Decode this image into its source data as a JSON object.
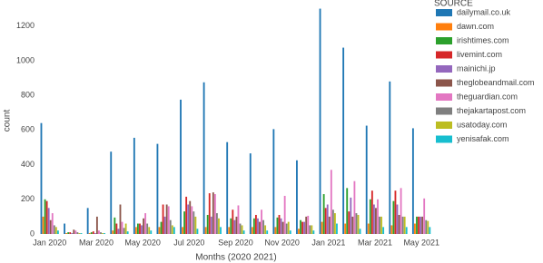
{
  "chart_data": {
    "type": "grouped-bar",
    "x_label": "Months (2020 2021)",
    "y_label": "count",
    "legend_title": "SOURCE",
    "categories": [
      "Jan 2020",
      null,
      "Mar 2020",
      null,
      "May 2020",
      null,
      "Jul 2020",
      null,
      "Sep 2020",
      null,
      "Nov 2020",
      null,
      "Jan 2021",
      null,
      "Mar 2021",
      null,
      "May 2021"
    ],
    "ylim": [
      0,
      1350
    ],
    "yticks": [
      0,
      200,
      400,
      600,
      800,
      1000,
      1200
    ],
    "legend_position": "right",
    "series": [
      {
        "name": "dailymail.co.uk",
        "color": "#1f77b4",
        "values": [
          640,
          60,
          150,
          475,
          555,
          520,
          775,
          875,
          530,
          465,
          605,
          425,
          1300,
          1075,
          625,
          880,
          610
        ]
      },
      {
        "name": "dawn.com",
        "color": "#ff7f0e",
        "values": [
          100,
          5,
          5,
          20,
          40,
          40,
          40,
          40,
          40,
          40,
          40,
          30,
          70,
          60,
          60,
          50,
          60
        ]
      },
      {
        "name": "irishtimes.com",
        "color": "#2ca02c",
        "values": [
          200,
          10,
          10,
          95,
          60,
          70,
          130,
          110,
          90,
          90,
          95,
          80,
          230,
          265,
          200,
          190,
          100
        ]
      },
      {
        "name": "livemint.com",
        "color": "#d62728",
        "values": [
          190,
          10,
          15,
          60,
          60,
          170,
          215,
          235,
          140,
          110,
          110,
          70,
          150,
          130,
          250,
          250,
          100
        ]
      },
      {
        "name": "mainichi.jp",
        "color": "#9467bd",
        "values": [
          150,
          5,
          5,
          30,
          50,
          100,
          170,
          100,
          80,
          90,
          90,
          70,
          170,
          210,
          170,
          170,
          100
        ]
      },
      {
        "name": "theglobeandmail.com",
        "color": "#8c564b",
        "values": [
          80,
          25,
          100,
          170,
          90,
          170,
          190,
          240,
          100,
          70,
          70,
          100,
          100,
          100,
          150,
          110,
          100
        ]
      },
      {
        "name": "theguardian.com",
        "color": "#e377c2",
        "values": [
          120,
          20,
          20,
          70,
          120,
          160,
          160,
          230,
          165,
          140,
          220,
          105,
          370,
          305,
          200,
          265,
          205
        ]
      },
      {
        "name": "thejakartapost.com",
        "color": "#7f7f7f",
        "values": [
          50,
          10,
          10,
          35,
          60,
          80,
          130,
          120,
          60,
          80,
          60,
          50,
          140,
          120,
          100,
          100,
          80
        ]
      },
      {
        "name": "usatoday.com",
        "color": "#bcbd22",
        "values": [
          40,
          5,
          5,
          60,
          40,
          50,
          100,
          90,
          50,
          50,
          70,
          50,
          120,
          110,
          100,
          100,
          75
        ]
      },
      {
        "name": "yenisafak.com",
        "color": "#17becf",
        "values": [
          20,
          5,
          5,
          15,
          20,
          40,
          30,
          40,
          20,
          20,
          20,
          20,
          60,
          30,
          40,
          40,
          40
        ]
      }
    ]
  }
}
